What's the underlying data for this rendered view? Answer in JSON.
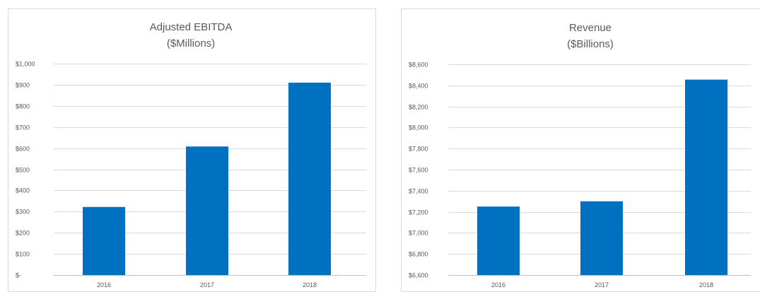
{
  "chart_data": [
    {
      "type": "bar",
      "title": "Adjusted EBITDA",
      "subtitle": "($Millions)",
      "categories": [
        "2016",
        "2017",
        "2018"
      ],
      "values": [
        322,
        608,
        910
      ],
      "ylim": [
        0,
        1000
      ],
      "yticks": [
        0,
        100,
        200,
        300,
        400,
        500,
        600,
        700,
        800,
        900,
        1000
      ],
      "ytick_labels": [
        "$-",
        "$100",
        "$200",
        "$300",
        "$400",
        "$500",
        "$600",
        "$700",
        "$800",
        "$900",
        "$1,000"
      ],
      "grid": true,
      "legend": false,
      "bar_color": "#0070c0"
    },
    {
      "type": "bar",
      "title": "Revenue",
      "subtitle": "($Billions)",
      "categories": [
        "2016",
        "2017",
        "2018"
      ],
      "values": [
        7250,
        7300,
        8455
      ],
      "ylim": [
        6600,
        8600
      ],
      "yticks": [
        6600,
        6800,
        7000,
        7200,
        7400,
        7600,
        7800,
        8000,
        8200,
        8400,
        8600
      ],
      "ytick_labels": [
        "$6,600",
        "$6,800",
        "$7,000",
        "$7,200",
        "$7,400",
        "$7,600",
        "$7,800",
        "$8,000",
        "$8,200",
        "$8,400",
        "$8,600"
      ],
      "grid": true,
      "legend": false,
      "bar_color": "#0070c0"
    }
  ]
}
